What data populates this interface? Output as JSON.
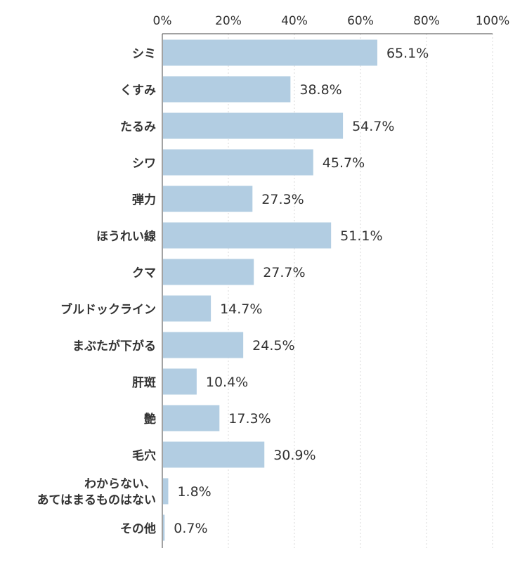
{
  "colors": {
    "bar": "#b2cde2",
    "text": "#333333",
    "axis": "#444444",
    "grid": "#d9d9d9"
  },
  "chart_data": {
    "type": "bar",
    "orientation": "horizontal",
    "categories": [
      [
        "シミ"
      ],
      [
        "くすみ"
      ],
      [
        "たるみ"
      ],
      [
        "シワ"
      ],
      [
        "弾力"
      ],
      [
        "ほうれい線"
      ],
      [
        "クマ"
      ],
      [
        "ブルドックライン"
      ],
      [
        "まぶたが下がる"
      ],
      [
        "肝斑"
      ],
      [
        "艶"
      ],
      [
        "毛穴"
      ],
      [
        "わからない、",
        "あてはまるものはない"
      ],
      [
        "その他"
      ]
    ],
    "values": [
      65.1,
      38.8,
      54.7,
      45.7,
      27.3,
      51.1,
      27.7,
      14.7,
      24.5,
      10.4,
      17.3,
      30.9,
      1.8,
      0.7
    ],
    "value_labels": [
      "65.1%",
      "38.8%",
      "54.7%",
      "45.7%",
      "27.3%",
      "51.1%",
      "27.7%",
      "14.7%",
      "24.5%",
      "10.4%",
      "17.3%",
      "30.9%",
      "1.8%",
      "0.7%"
    ],
    "xlim": [
      0,
      100
    ],
    "xticks": [
      0,
      20,
      40,
      60,
      80,
      100
    ],
    "xtick_labels": [
      "0%",
      "20%",
      "40%",
      "60%",
      "80%",
      "100%"
    ],
    "axis_position": "top",
    "grid": true,
    "legend": "none"
  }
}
